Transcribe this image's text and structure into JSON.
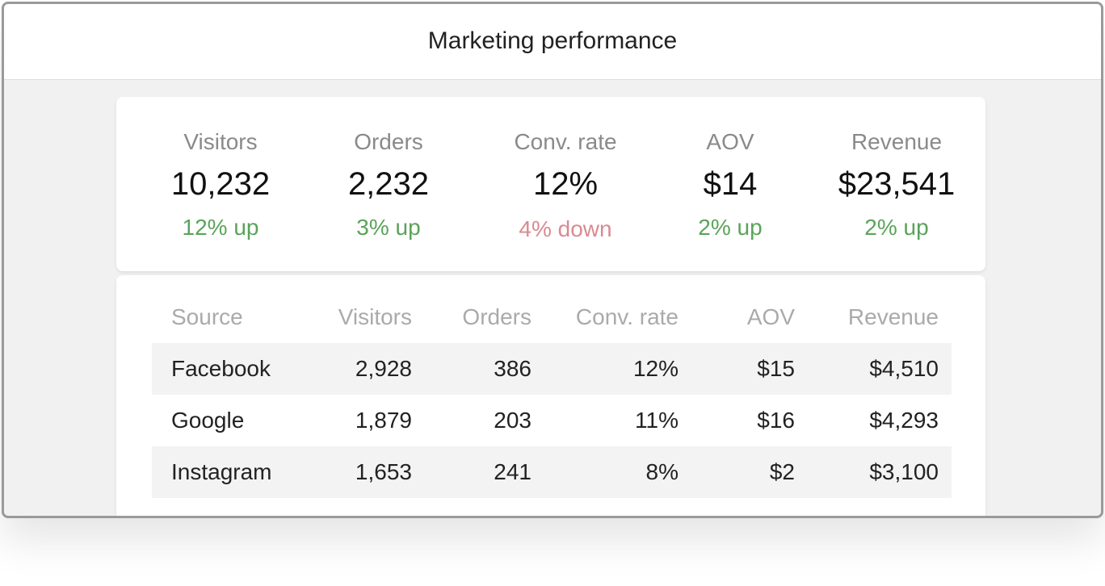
{
  "window": {
    "title": "Marketing performance"
  },
  "kpis": [
    {
      "label": "Visitors",
      "value": "10,232",
      "trend": "12% up",
      "direction": "up"
    },
    {
      "label": "Orders",
      "value": "2,232",
      "trend": "3% up",
      "direction": "up"
    },
    {
      "label": "Conv. rate",
      "value": "12%",
      "trend": "4% down",
      "direction": "down"
    },
    {
      "label": "AOV",
      "value": "$14",
      "trend": "2% up",
      "direction": "up"
    },
    {
      "label": "Revenue",
      "value": "$23,541",
      "trend": "2% up",
      "direction": "up"
    }
  ],
  "colors": {
    "up": "#5aa35a",
    "down": "#d88a92"
  },
  "table": {
    "columns": [
      "Source",
      "Visitors",
      "Orders",
      "Conv. rate",
      "AOV",
      "Revenue"
    ],
    "rows": [
      [
        "Facebook",
        "2,928",
        "386",
        "12%",
        "$15",
        "$4,510"
      ],
      [
        "Google",
        "1,879",
        "203",
        "11%",
        "$16",
        "$4,293"
      ],
      [
        "Instagram",
        "1,653",
        "241",
        "8%",
        "$2",
        "$3,100"
      ]
    ]
  }
}
